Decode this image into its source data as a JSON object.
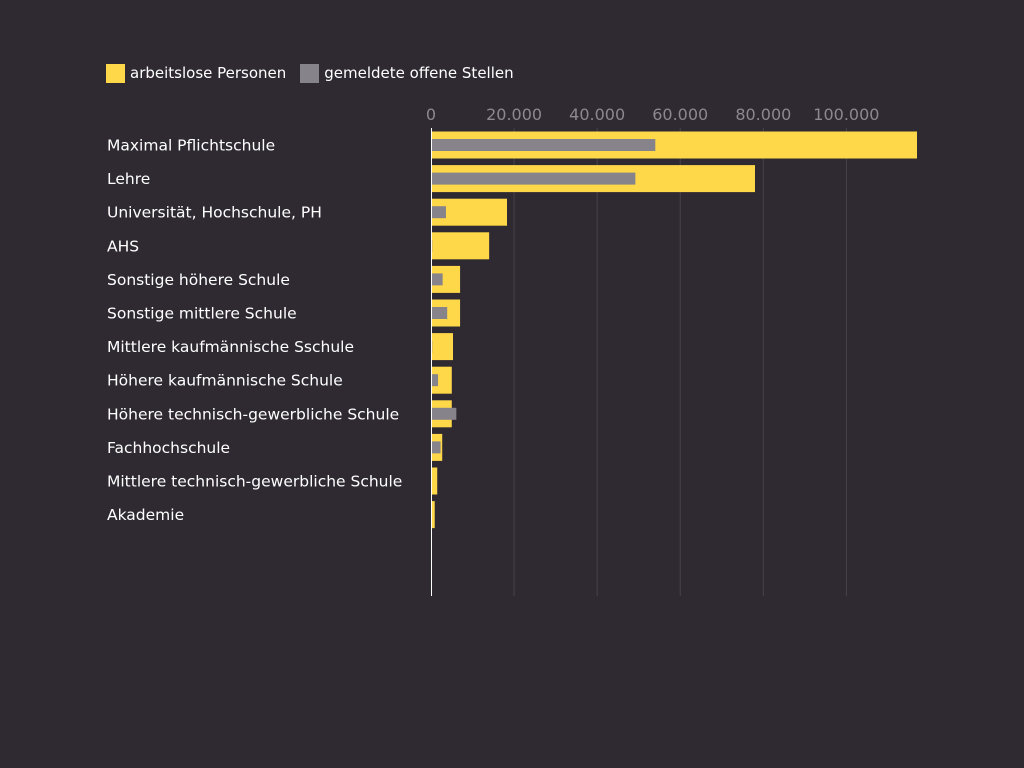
{
  "chart_data": {
    "type": "bar",
    "orientation": "horizontal",
    "title": "",
    "xlabel": "",
    "ylabel": "",
    "categories": [
      "Maximal Pflichtschule",
      "Lehre",
      "Universität, Hochschule, PH",
      "AHS",
      "Sonstige höhere Schule",
      "Sonstige mittlere Schule",
      "Mittlere kaufmännische Sschule",
      "Höhere kaufmännische Schule",
      "Höhere technisch-gewerbliche Schule",
      "Fachhochschule",
      "Mittlere technisch-gewerbliche Schule",
      "Akademie"
    ],
    "series": [
      {
        "name": "arbeitslose Personen",
        "color": "#ffd84a",
        "values": [
          117000,
          78000,
          18300,
          14000,
          7000,
          7000,
          5300,
          5000,
          5000,
          2700,
          1500,
          900
        ]
      },
      {
        "name": "gemeldete offene Stellen",
        "color": "#86838a",
        "values": [
          54000,
          49200,
          3600,
          300,
          2800,
          3900,
          300,
          1700,
          6100,
          2300,
          200,
          200
        ]
      }
    ],
    "xlim": [
      0,
      117000
    ],
    "xticks": [
      0,
      20000,
      40000,
      60000,
      80000,
      100000
    ],
    "xtick_labels": [
      "0",
      "20.000",
      "40.000",
      "60.000",
      "80.000",
      "100.000"
    ],
    "grid": true,
    "axis_position": "top",
    "legend_position": "top-left"
  }
}
